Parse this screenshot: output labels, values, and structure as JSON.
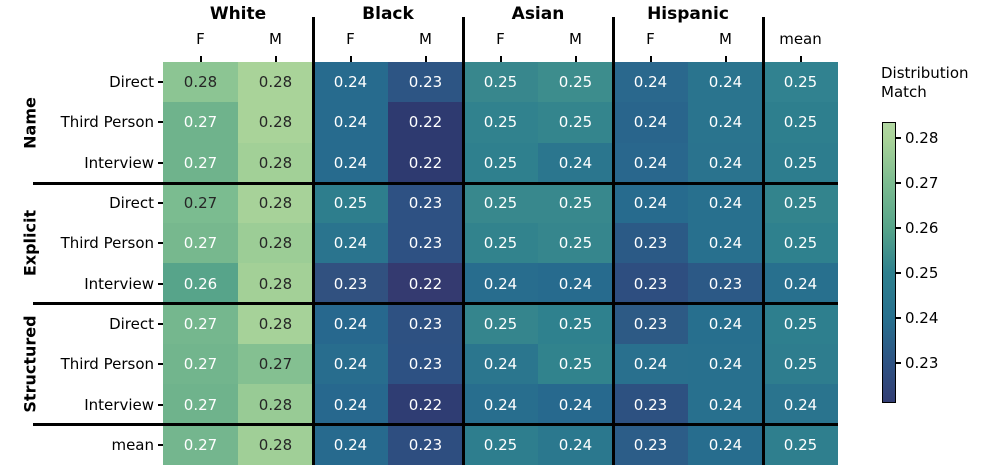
{
  "chart_data": {
    "type": "heatmap",
    "legend_position": "right",
    "colorbar": {
      "title": "Distribution\nMatch",
      "ticks": [
        "0.28",
        "0.27",
        "0.26",
        "0.25",
        "0.24",
        "0.23"
      ],
      "gradient_stops": [
        {
          "p": 0,
          "c": "#b2d7a2"
        },
        {
          "p": 5.8,
          "c": "#a9d399"
        },
        {
          "p": 21.8,
          "c": "#7bbb90"
        },
        {
          "p": 37.8,
          "c": "#56a48a"
        },
        {
          "p": 53.8,
          "c": "#2e808e"
        },
        {
          "p": 69.8,
          "c": "#27708e"
        },
        {
          "p": 85.8,
          "c": "#2e5383"
        },
        {
          "p": 100,
          "c": "#333e74"
        }
      ]
    },
    "text_palette": {
      "dark": "#262626",
      "light": "#ffffff"
    },
    "col_groups": [
      {
        "label": "White"
      },
      {
        "label": "Black"
      },
      {
        "label": "Asian"
      },
      {
        "label": "Hispanic"
      }
    ],
    "sub_cols": [
      "F",
      "M",
      "F",
      "M",
      "F",
      "M",
      "F",
      "M",
      "mean"
    ],
    "row_groups": [
      {
        "label": "Name"
      },
      {
        "label": "Explicit"
      },
      {
        "label": "Structured"
      }
    ],
    "row_labels": [
      "Direct",
      "Third Person",
      "Interview",
      "Direct",
      "Third Person",
      "Interview",
      "Direct",
      "Third Person",
      "Interview",
      "mean"
    ],
    "rows": [
      [
        {
          "v": 0.28,
          "c": "#8cc593",
          "t": "dark"
        },
        {
          "v": 0.28,
          "c": "#a9d399",
          "t": "dark"
        },
        {
          "v": 0.24,
          "c": "#276b8e",
          "t": "light"
        },
        {
          "v": 0.23,
          "c": "#2d5584",
          "t": "light"
        },
        {
          "v": 0.25,
          "c": "#38878d",
          "t": "light"
        },
        {
          "v": 0.25,
          "c": "#3d8d8d",
          "t": "light"
        },
        {
          "v": 0.24,
          "c": "#2a688d",
          "t": "light"
        },
        {
          "v": 0.24,
          "c": "#2a748e",
          "t": "light"
        },
        {
          "v": 0.25,
          "c": "#318290",
          "t": "light"
        }
      ],
      [
        {
          "v": 0.27,
          "c": "#6fb38c",
          "t": "light"
        },
        {
          "v": 0.28,
          "c": "#a9d399",
          "t": "dark"
        },
        {
          "v": 0.24,
          "c": "#276b8e",
          "t": "light"
        },
        {
          "v": 0.22,
          "c": "#2e3a70",
          "t": "light"
        },
        {
          "v": 0.25,
          "c": "#31828e",
          "t": "light"
        },
        {
          "v": 0.25,
          "c": "#34858d",
          "t": "light"
        },
        {
          "v": 0.24,
          "c": "#29658c",
          "t": "light"
        },
        {
          "v": 0.24,
          "c": "#2a748e",
          "t": "light"
        },
        {
          "v": 0.25,
          "c": "#2e7f8e",
          "t": "light"
        }
      ],
      [
        {
          "v": 0.27,
          "c": "#6fb38c",
          "t": "light"
        },
        {
          "v": 0.28,
          "c": "#a2d097",
          "t": "dark"
        },
        {
          "v": 0.24,
          "c": "#276b8e",
          "t": "light"
        },
        {
          "v": 0.22,
          "c": "#2e3a70",
          "t": "light"
        },
        {
          "v": 0.25,
          "c": "#2f808e",
          "t": "light"
        },
        {
          "v": 0.24,
          "c": "#2b768e",
          "t": "light"
        },
        {
          "v": 0.24,
          "c": "#29678d",
          "t": "light"
        },
        {
          "v": 0.24,
          "c": "#2a738e",
          "t": "light"
        },
        {
          "v": 0.25,
          "c": "#2d7d8e",
          "t": "light"
        }
      ],
      [
        {
          "v": 0.27,
          "c": "#7bbc90",
          "t": "dark"
        },
        {
          "v": 0.28,
          "c": "#a7d299",
          "t": "dark"
        },
        {
          "v": 0.25,
          "c": "#2e7e8d",
          "t": "light"
        },
        {
          "v": 0.23,
          "c": "#2e5183",
          "t": "light"
        },
        {
          "v": 0.25,
          "c": "#38888d",
          "t": "light"
        },
        {
          "v": 0.25,
          "c": "#38888d",
          "t": "light"
        },
        {
          "v": 0.24,
          "c": "#276b8e",
          "t": "light"
        },
        {
          "v": 0.24,
          "c": "#28708e",
          "t": "light"
        },
        {
          "v": 0.25,
          "c": "#33848d",
          "t": "light"
        }
      ],
      [
        {
          "v": 0.27,
          "c": "#77b88e",
          "t": "light"
        },
        {
          "v": 0.28,
          "c": "#9ccd96",
          "t": "dark"
        },
        {
          "v": 0.24,
          "c": "#2a748e",
          "t": "light"
        },
        {
          "v": 0.23,
          "c": "#2e5183",
          "t": "light"
        },
        {
          "v": 0.25,
          "c": "#32838d",
          "t": "light"
        },
        {
          "v": 0.25,
          "c": "#36868d",
          "t": "light"
        },
        {
          "v": 0.23,
          "c": "#2b5a86",
          "t": "light"
        },
        {
          "v": 0.24,
          "c": "#28708e",
          "t": "light"
        },
        {
          "v": 0.25,
          "c": "#2f818e",
          "t": "light"
        }
      ],
      [
        {
          "v": 0.26,
          "c": "#57a48a",
          "t": "light"
        },
        {
          "v": 0.28,
          "c": "#a3d097",
          "t": "dark"
        },
        {
          "v": 0.23,
          "c": "#315180",
          "t": "light"
        },
        {
          "v": 0.22,
          "c": "#343a70",
          "t": "light"
        },
        {
          "v": 0.24,
          "c": "#286d8e",
          "t": "light"
        },
        {
          "v": 0.24,
          "c": "#276b8e",
          "t": "light"
        },
        {
          "v": 0.23,
          "c": "#2e4e80",
          "t": "light"
        },
        {
          "v": 0.23,
          "c": "#2c5986",
          "t": "light"
        },
        {
          "v": 0.24,
          "c": "#28708e",
          "t": "light"
        }
      ],
      [
        {
          "v": 0.27,
          "c": "#75b78e",
          "t": "light"
        },
        {
          "v": 0.28,
          "c": "#a6d299",
          "t": "dark"
        },
        {
          "v": 0.24,
          "c": "#27688e",
          "t": "light"
        },
        {
          "v": 0.23,
          "c": "#2e5182",
          "t": "light"
        },
        {
          "v": 0.25,
          "c": "#35858d",
          "t": "light"
        },
        {
          "v": 0.25,
          "c": "#2f818e",
          "t": "light"
        },
        {
          "v": 0.23,
          "c": "#2d5a85",
          "t": "light"
        },
        {
          "v": 0.24,
          "c": "#276f8e",
          "t": "light"
        },
        {
          "v": 0.25,
          "c": "#2e7f8e",
          "t": "light"
        }
      ],
      [
        {
          "v": 0.27,
          "c": "#72b58d",
          "t": "light"
        },
        {
          "v": 0.27,
          "c": "#84c091",
          "t": "dark"
        },
        {
          "v": 0.24,
          "c": "#286d8e",
          "t": "light"
        },
        {
          "v": 0.23,
          "c": "#2d5183",
          "t": "light"
        },
        {
          "v": 0.24,
          "c": "#2b768e",
          "t": "light"
        },
        {
          "v": 0.25,
          "c": "#31838d",
          "t": "light"
        },
        {
          "v": 0.24,
          "c": "#29708e",
          "t": "light"
        },
        {
          "v": 0.24,
          "c": "#28708e",
          "t": "light"
        },
        {
          "v": 0.25,
          "c": "#2e7d8e",
          "t": "light"
        }
      ],
      [
        {
          "v": 0.27,
          "c": "#6fb38c",
          "t": "light"
        },
        {
          "v": 0.28,
          "c": "#98cb95",
          "t": "dark"
        },
        {
          "v": 0.24,
          "c": "#27688e",
          "t": "light"
        },
        {
          "v": 0.22,
          "c": "#2f3d73",
          "t": "light"
        },
        {
          "v": 0.24,
          "c": "#286e8e",
          "t": "light"
        },
        {
          "v": 0.24,
          "c": "#27698e",
          "t": "light"
        },
        {
          "v": 0.23,
          "c": "#2d5181",
          "t": "light"
        },
        {
          "v": 0.24,
          "c": "#28708e",
          "t": "light"
        },
        {
          "v": 0.24,
          "c": "#2a748e",
          "t": "light"
        }
      ],
      [
        {
          "v": 0.27,
          "c": "#74b68e",
          "t": "light"
        },
        {
          "v": 0.28,
          "c": "#a0cf97",
          "t": "dark"
        },
        {
          "v": 0.24,
          "c": "#276a8e",
          "t": "light"
        },
        {
          "v": 0.23,
          "c": "#2e4e80",
          "t": "light"
        },
        {
          "v": 0.25,
          "c": "#2e7e8e",
          "t": "light"
        },
        {
          "v": 0.24,
          "c": "#2b788e",
          "t": "light"
        },
        {
          "v": 0.23,
          "c": "#2c5d88",
          "t": "light"
        },
        {
          "v": 0.24,
          "c": "#276d8e",
          "t": "light"
        },
        {
          "v": 0.25,
          "c": "#2f7f8e",
          "t": "light"
        }
      ]
    ]
  }
}
